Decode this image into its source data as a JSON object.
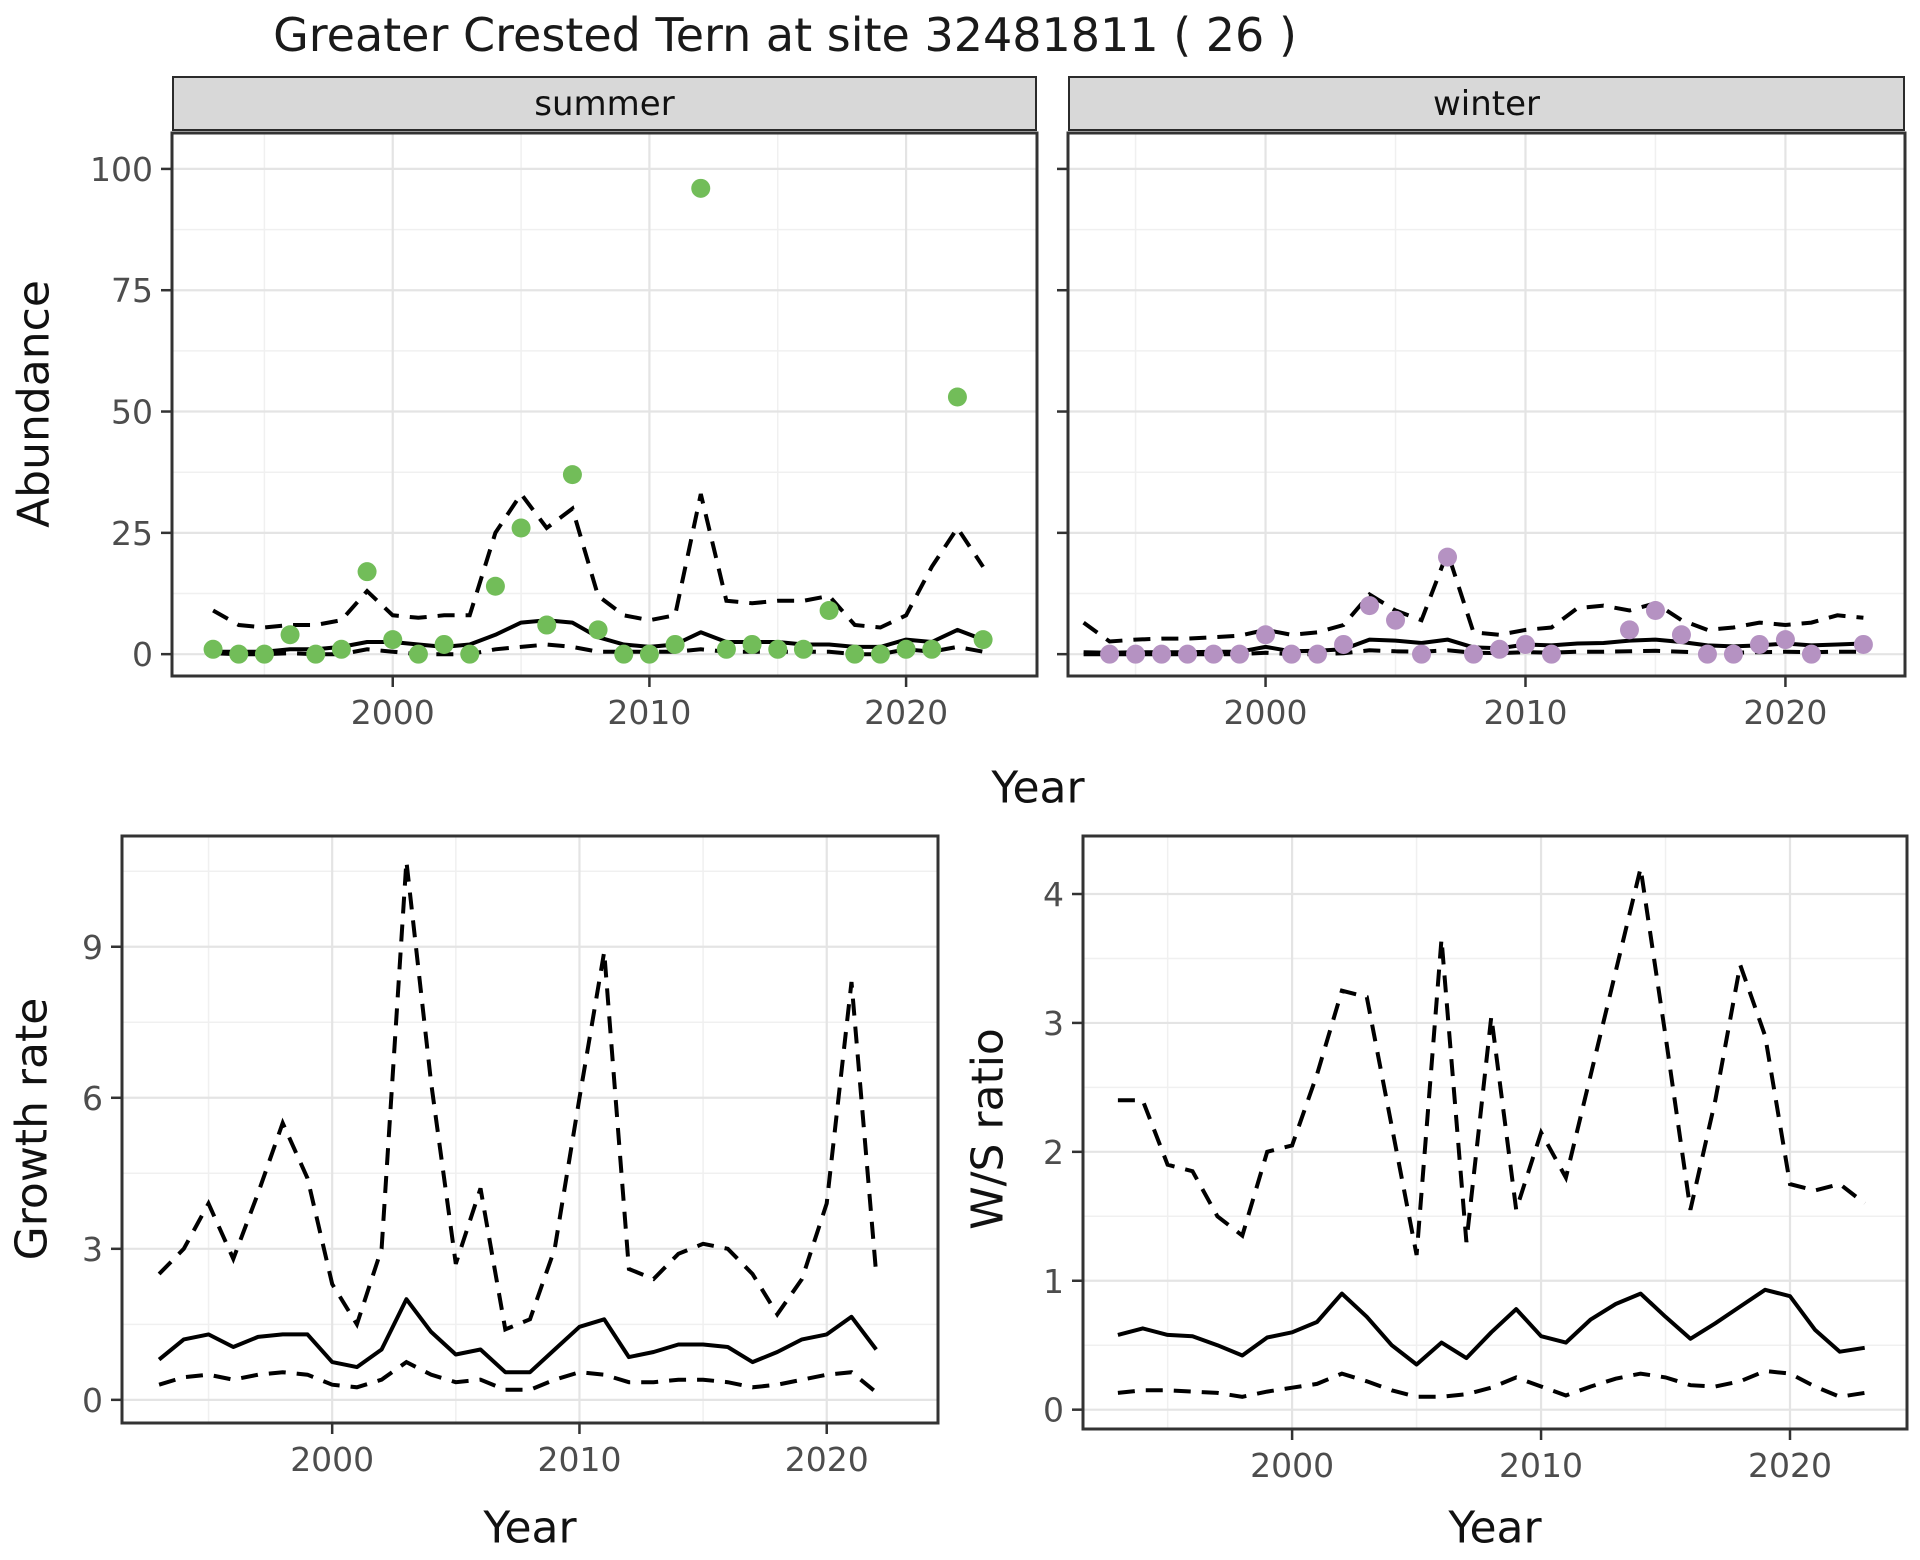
{
  "title": "Greater Crested Tern at site 32481811 ( 26 )",
  "colors": {
    "summer_point": "#72bd59",
    "winter_point": "#b592c2",
    "line": "#000000",
    "grid_major": "#e4e4e4",
    "grid_minor": "#f0f0f0",
    "strip_bg": "#d8d8d8",
    "panel_border": "#333333",
    "tick_label": "#4d4d4d"
  },
  "chart_data": [
    {
      "id": "abundance_summer",
      "type": "scatter",
      "facet_label": "summer",
      "xlabel": "Year",
      "ylabel": "Abundance",
      "x_ticks": [
        2000,
        2010,
        2020
      ],
      "y_ticks": [
        0,
        25,
        50,
        75,
        100
      ],
      "xlim": [
        1991.4,
        2025.1
      ],
      "ylim": [
        -4.5,
        107.4
      ],
      "years": [
        1993,
        1994,
        1995,
        1996,
        1997,
        1998,
        1999,
        2000,
        2001,
        2002,
        2003,
        2004,
        2005,
        2006,
        2007,
        2008,
        2009,
        2010,
        2011,
        2012,
        2013,
        2014,
        2015,
        2016,
        2017,
        2018,
        2019,
        2020,
        2021,
        2022,
        2023
      ],
      "points": [
        1,
        0,
        0,
        4,
        0,
        1,
        17,
        3,
        0,
        2,
        0,
        14,
        26,
        6,
        37,
        5,
        0,
        0,
        2,
        96,
        1,
        2,
        1,
        1,
        9,
        0,
        0,
        1,
        1,
        53,
        3
      ],
      "mean": [
        0.5,
        0.5,
        0.5,
        1,
        1,
        1.5,
        2.5,
        2.5,
        2,
        1.5,
        2,
        4,
        6.5,
        7,
        6.5,
        3.5,
        2,
        1.5,
        2,
        4.5,
        2.5,
        2.5,
        2.5,
        2,
        2,
        1.5,
        1.5,
        3,
        2.5,
        5,
        3
      ],
      "upper": [
        9,
        6,
        5.5,
        6,
        6,
        7,
        13,
        8,
        7.5,
        8,
        8,
        25,
        33,
        26,
        30,
        12,
        8,
        7,
        8,
        33,
        11,
        10.5,
        11,
        11,
        12,
        6,
        5.5,
        8,
        18,
        26,
        18
      ],
      "lower": [
        0.2,
        0,
        0,
        0.2,
        0,
        0,
        1,
        0.5,
        0,
        0,
        0,
        1,
        1.5,
        2,
        1.5,
        0.5,
        0.5,
        0.5,
        0.5,
        1,
        0.5,
        0.5,
        0.5,
        0.5,
        0.5,
        0,
        0,
        1,
        0.5,
        1.5,
        0.5
      ]
    },
    {
      "id": "abundance_winter",
      "type": "scatter",
      "facet_label": "winter",
      "xlabel": "Year",
      "ylabel": "Abundance",
      "x_ticks": [
        2000,
        2010,
        2020
      ],
      "y_ticks": [
        0,
        25,
        50,
        75,
        100
      ],
      "xlim": [
        1992.4,
        2024.6
      ],
      "ylim": [
        -4.5,
        107.4
      ],
      "years": [
        1993,
        1994,
        1995,
        1996,
        1997,
        1998,
        1999,
        2000,
        2001,
        2002,
        2003,
        2004,
        2005,
        2006,
        2007,
        2008,
        2009,
        2010,
        2011,
        2012,
        2013,
        2014,
        2015,
        2016,
        2017,
        2018,
        2019,
        2020,
        2021,
        2022,
        2023
      ],
      "points": [
        null,
        0,
        0,
        0,
        0,
        0,
        0,
        4,
        0,
        0,
        2,
        10,
        7,
        0,
        20,
        0,
        1,
        2,
        0,
        null,
        null,
        5,
        9,
        4,
        0,
        0,
        2,
        3,
        0,
        null,
        2
      ],
      "mean": [
        0.4,
        0.3,
        0.4,
        0.4,
        0.4,
        0.5,
        0.5,
        1.5,
        0.6,
        0.7,
        1.0,
        3.0,
        2.8,
        2.3,
        3.0,
        1.4,
        1.2,
        2.0,
        1.8,
        2.2,
        2.3,
        2.8,
        3.0,
        2.5,
        1.8,
        1.6,
        1.8,
        2.2,
        1.8,
        2.0,
        2.2
      ],
      "upper": [
        6.5,
        2.6,
        3.0,
        3.2,
        3.2,
        3.5,
        3.8,
        5.0,
        4.0,
        4.5,
        6.0,
        12.3,
        9.0,
        7.0,
        21,
        4.5,
        4.0,
        5.0,
        5.5,
        9.5,
        10,
        9,
        10.5,
        7,
        5,
        5.5,
        6.5,
        6,
        6.5,
        8,
        7.5
      ],
      "lower": [
        0,
        0,
        0,
        0,
        0,
        0,
        0,
        0.3,
        0,
        0,
        0.2,
        0.8,
        0.6,
        0.5,
        0.8,
        0.3,
        0.2,
        0.4,
        0.3,
        0.5,
        0.5,
        0.6,
        0.7,
        0.5,
        0.3,
        0.3,
        0.4,
        0.5,
        0.4,
        0.5,
        0.5
      ]
    },
    {
      "id": "growth_rate",
      "type": "line",
      "facet_label": "",
      "xlabel": "Year",
      "ylabel": "Growth rate",
      "x_ticks": [
        2000,
        2010,
        2020
      ],
      "y_ticks": [
        0,
        3,
        6,
        9
      ],
      "xlim": [
        1991.5,
        2024.5
      ],
      "ylim": [
        -0.46,
        11.2
      ],
      "years": [
        1993,
        1994,
        1995,
        1996,
        1997,
        1998,
        1999,
        2000,
        2001,
        2002,
        2003,
        2004,
        2005,
        2006,
        2007,
        2008,
        2009,
        2010,
        2011,
        2012,
        2013,
        2014,
        2015,
        2016,
        2017,
        2018,
        2019,
        2020,
        2021,
        2022
      ],
      "points": null,
      "mean": [
        0.8,
        1.2,
        1.3,
        1.05,
        1.25,
        1.3,
        1.3,
        0.75,
        0.65,
        1.0,
        2.0,
        1.35,
        0.9,
        1.0,
        0.55,
        0.55,
        1.0,
        1.45,
        1.6,
        0.85,
        0.95,
        1.1,
        1.1,
        1.05,
        0.75,
        0.95,
        1.2,
        1.3,
        1.65,
        1.0
      ],
      "upper": [
        2.5,
        3.0,
        3.9,
        2.8,
        4.1,
        5.5,
        4.4,
        2.3,
        1.5,
        3.0,
        10.7,
        6.3,
        2.7,
        4.2,
        1.4,
        1.6,
        3.0,
        6.0,
        8.9,
        2.6,
        2.4,
        2.9,
        3.1,
        3.0,
        2.5,
        1.7,
        2.4,
        3.9,
        8.3,
        2.5
      ],
      "lower": [
        0.3,
        0.45,
        0.5,
        0.4,
        0.5,
        0.55,
        0.5,
        0.3,
        0.25,
        0.4,
        0.75,
        0.5,
        0.35,
        0.4,
        0.2,
        0.2,
        0.4,
        0.55,
        0.5,
        0.35,
        0.35,
        0.4,
        0.4,
        0.35,
        0.25,
        0.3,
        0.4,
        0.5,
        0.55,
        0.15
      ]
    },
    {
      "id": "ws_ratio",
      "type": "line",
      "facet_label": "",
      "xlabel": "Year",
      "ylabel": "W/S ratio",
      "x_ticks": [
        2000,
        2010,
        2020
      ],
      "y_ticks": [
        0,
        1,
        2,
        3,
        4
      ],
      "xlim": [
        1991.6,
        2024.7
      ],
      "ylim": [
        -0.15,
        4.45
      ],
      "years": [
        1993,
        1994,
        1995,
        1996,
        1997,
        1998,
        1999,
        2000,
        2001,
        2002,
        2003,
        2004,
        2005,
        2006,
        2007,
        2008,
        2009,
        2010,
        2011,
        2012,
        2013,
        2014,
        2015,
        2016,
        2017,
        2018,
        2019,
        2020,
        2021,
        2022,
        2023
      ],
      "points": null,
      "mean": [
        0.58,
        0.63,
        0.58,
        0.57,
        0.5,
        0.42,
        0.56,
        0.6,
        0.68,
        0.9,
        0.72,
        0.5,
        0.35,
        0.52,
        0.4,
        0.6,
        0.78,
        0.57,
        0.52,
        0.7,
        0.82,
        0.9,
        0.72,
        0.55,
        0.67,
        0.8,
        0.93,
        0.88,
        0.62,
        0.45,
        0.48
      ],
      "upper": [
        2.4,
        2.4,
        1.9,
        1.85,
        1.5,
        1.35,
        2.0,
        2.05,
        2.6,
        3.25,
        3.2,
        2.2,
        1.2,
        3.65,
        1.3,
        3.05,
        1.55,
        2.15,
        1.8,
        2.6,
        3.4,
        4.2,
        2.9,
        1.55,
        2.4,
        3.45,
        2.9,
        1.75,
        1.7,
        1.75,
        1.6
      ],
      "lower": [
        0.13,
        0.15,
        0.15,
        0.14,
        0.13,
        0.1,
        0.14,
        0.17,
        0.2,
        0.28,
        0.22,
        0.15,
        0.1,
        0.1,
        0.12,
        0.17,
        0.25,
        0.18,
        0.11,
        0.18,
        0.24,
        0.28,
        0.25,
        0.19,
        0.18,
        0.22,
        0.3,
        0.28,
        0.18,
        0.1,
        0.13
      ]
    }
  ]
}
